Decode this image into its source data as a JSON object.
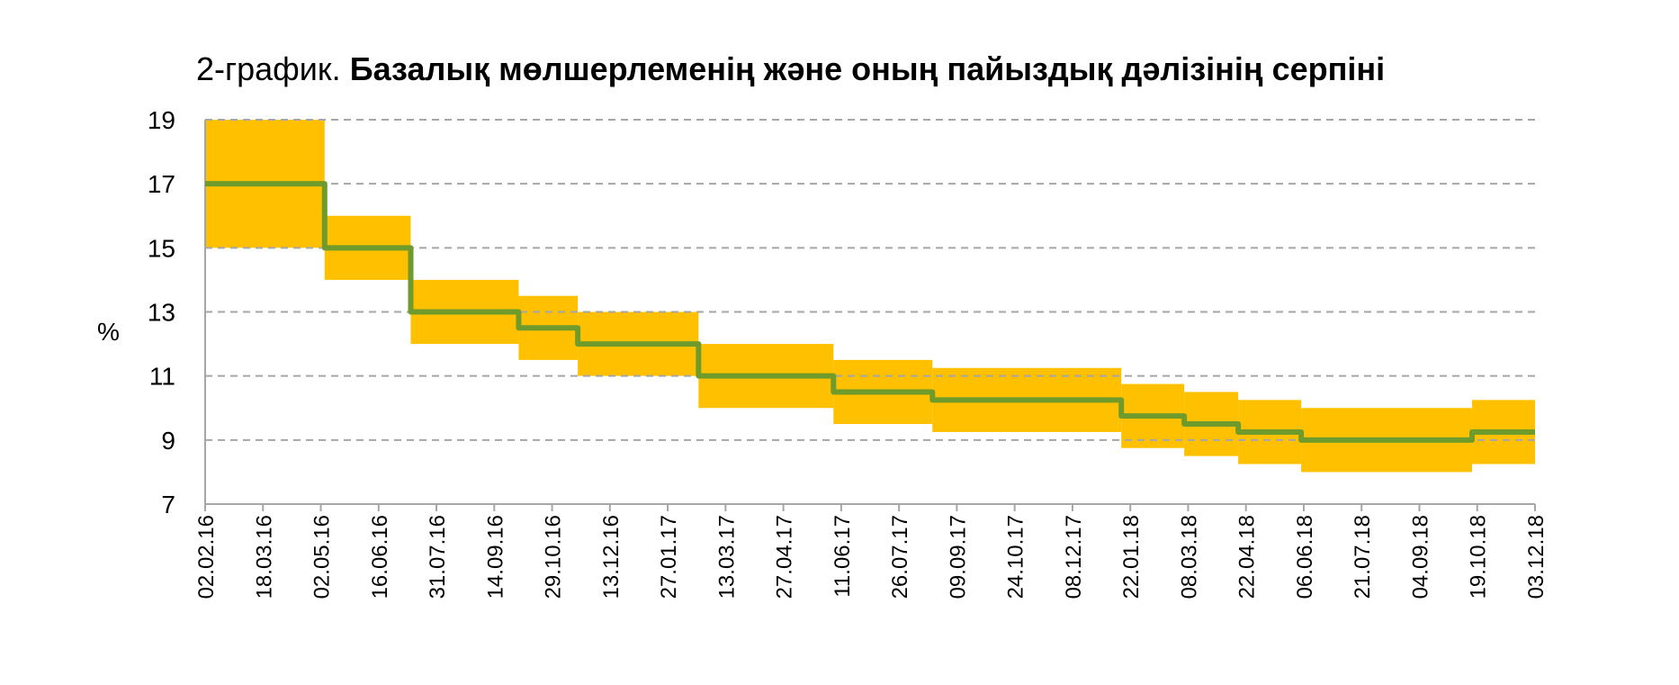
{
  "title": {
    "prefix": "2-график.",
    "bold": "Базалық мөлшерлеменің және оның пайыздық дәлізінің серпіні"
  },
  "chart_data": {
    "type": "line",
    "title": "2-график. Базалық мөлшерлеменің және оның пайыздық дәлізінің серпіні",
    "ylabel": "%",
    "ylim": [
      7,
      19
    ],
    "yticks": [
      7,
      9,
      11,
      13,
      15,
      17,
      19
    ],
    "grid": true,
    "x_tick_labels": [
      "02.02.16",
      "18.03.16",
      "02.05.16",
      "16.06.16",
      "31.07.16",
      "14.09.16",
      "29.10.16",
      "13.12.16",
      "27.01.17",
      "13.03.17",
      "27.04.17",
      "11.06.17",
      "26.07.17",
      "09.09.17",
      "24.10.17",
      "08.12.17",
      "22.01.18",
      "08.03.18",
      "22.04.18",
      "06.06.18",
      "21.07.18",
      "04.09.18",
      "19.10.18",
      "03.12.18"
    ],
    "x_range": [
      "02.02.16",
      "03.12.18"
    ],
    "colors": {
      "rate": "#6f9b2c",
      "corridor": "#ffc000",
      "grid": "#a6a6a6"
    },
    "series": [
      {
        "type": "step",
        "points": [
          {
            "x": "02.02.16",
            "y": 17.0
          },
          {
            "x": "05.05.16",
            "y": 15.0
          },
          {
            "x": "11.07.16",
            "y": 13.0
          },
          {
            "x": "03.10.16",
            "y": 12.5
          },
          {
            "x": "18.11.16",
            "y": 12.0
          },
          {
            "x": "20.02.17",
            "y": 11.0
          },
          {
            "x": "05.06.17",
            "y": 10.5
          },
          {
            "x": "21.08.17",
            "y": 10.25
          },
          {
            "x": "15.01.18",
            "y": 9.75
          },
          {
            "x": "05.03.18",
            "y": 9.5
          },
          {
            "x": "16.04.18",
            "y": 9.25
          },
          {
            "x": "04.06.18",
            "y": 9.0
          },
          {
            "x": "15.10.18",
            "y": 9.25
          },
          {
            "x": "03.12.18",
            "y": 9.25
          }
        ]
      },
      {
        "type": "band",
        "segments": [
          {
            "from": "02.02.16",
            "to": "05.05.16",
            "low": 15.0,
            "high": 19.0
          },
          {
            "from": "05.05.16",
            "to": "11.07.16",
            "low": 14.0,
            "high": 16.0
          },
          {
            "from": "11.07.16",
            "to": "03.10.16",
            "low": 12.0,
            "high": 14.0
          },
          {
            "from": "03.10.16",
            "to": "18.11.16",
            "low": 11.5,
            "high": 13.5
          },
          {
            "from": "18.11.16",
            "to": "20.02.17",
            "low": 11.0,
            "high": 13.0
          },
          {
            "from": "20.02.17",
            "to": "05.06.17",
            "low": 10.0,
            "high": 12.0
          },
          {
            "from": "05.06.17",
            "to": "21.08.17",
            "low": 9.5,
            "high": 11.5
          },
          {
            "from": "21.08.17",
            "to": "15.01.18",
            "low": 9.25,
            "high": 11.25
          },
          {
            "from": "15.01.18",
            "to": "05.03.18",
            "low": 8.75,
            "high": 10.75
          },
          {
            "from": "05.03.18",
            "to": "16.04.18",
            "low": 8.5,
            "high": 10.5
          },
          {
            "from": "16.04.18",
            "to": "04.06.18",
            "low": 8.25,
            "high": 10.25
          },
          {
            "from": "04.06.18",
            "to": "15.10.18",
            "low": 8.0,
            "high": 10.0
          },
          {
            "from": "15.10.18",
            "to": "03.12.18",
            "low": 8.25,
            "high": 10.25
          }
        ]
      }
    ]
  }
}
